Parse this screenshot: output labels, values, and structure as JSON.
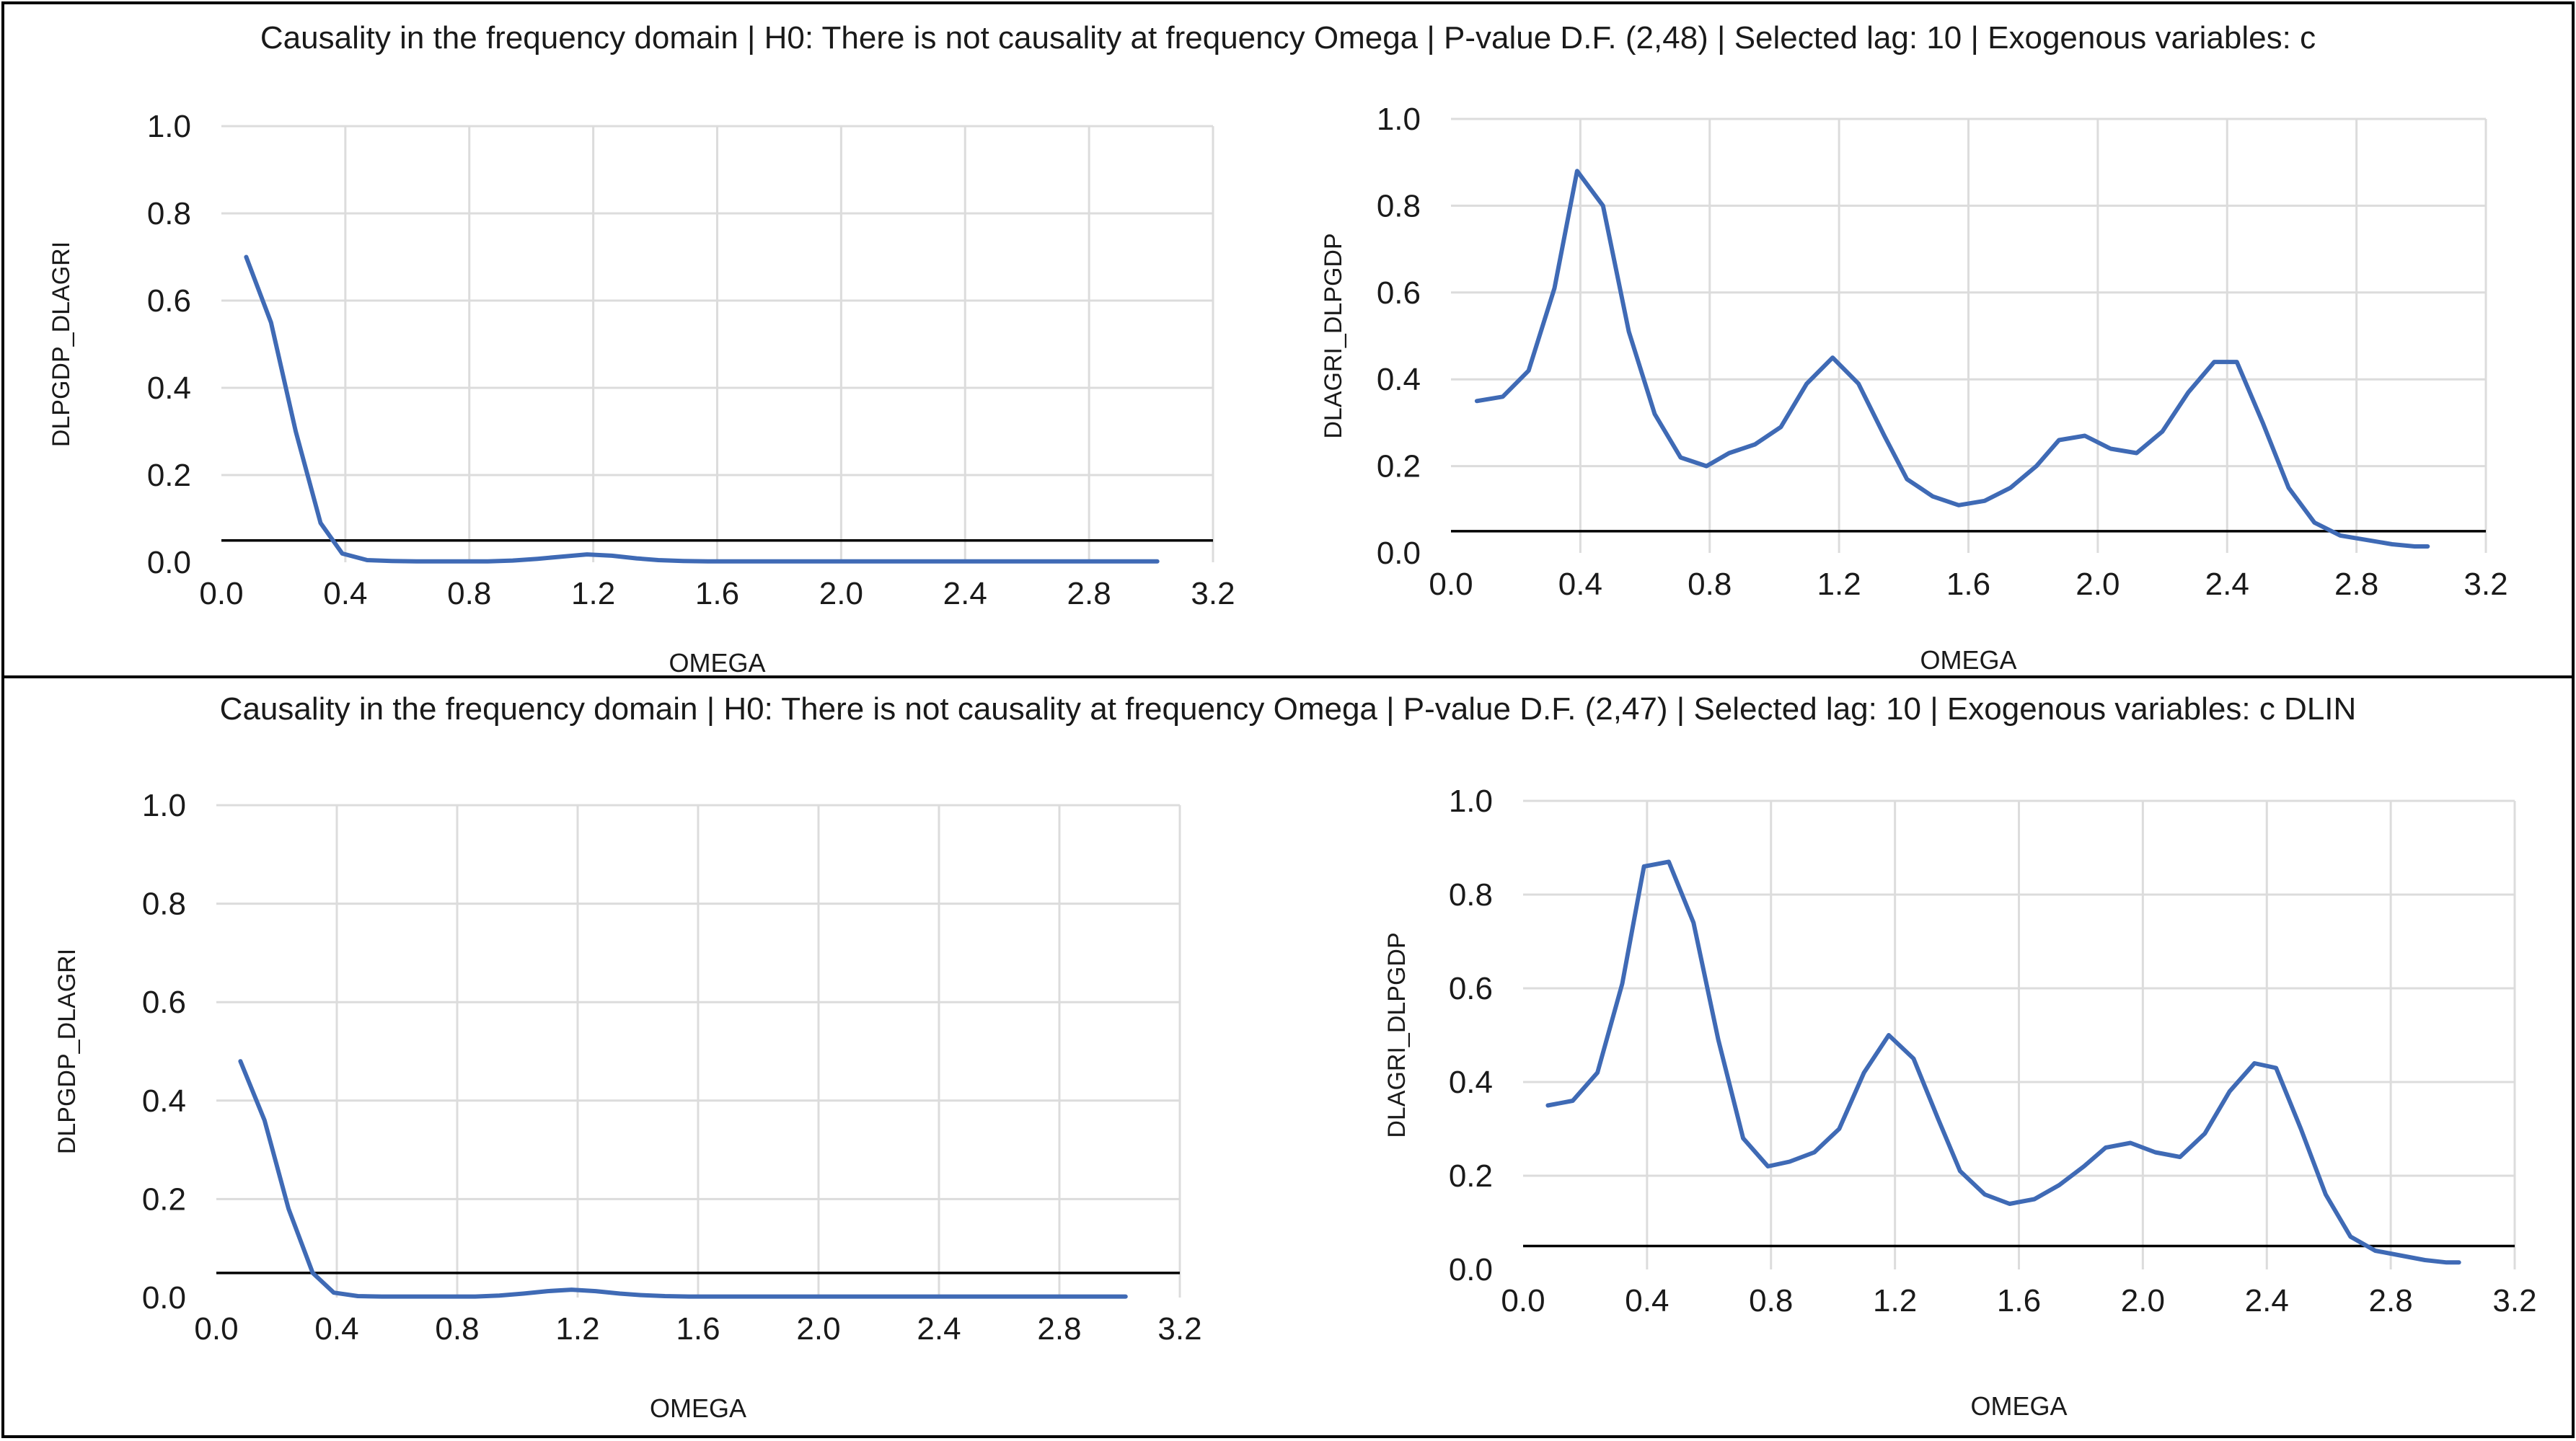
{
  "colors": {
    "series": "#3F6AB5",
    "reference": "#000000",
    "grid": "#dcdcdc",
    "frame": "#000000"
  },
  "panels": [
    {
      "title": "Causality in the frequency domain | H0: There is not causality at frequency Omega | P-value D.F. (2,48) | Selected lag: 10 | Exogenous variables: c"
    },
    {
      "title": "Causality in the frequency domain | H0: There is not causality at frequency Omega | P-value D.F. (2,47) | Selected lag: 10 | Exogenous variables: c DLIN"
    }
  ],
  "chart_data": [
    {
      "type": "line",
      "panel": 0,
      "position": "left",
      "title": "",
      "xlabel": "OMEGA",
      "ylabel": "DLPGDP_DLAGRI",
      "xlim": [
        0.0,
        3.2
      ],
      "ylim": [
        0.0,
        1.0
      ],
      "xticks": [
        "0.0",
        "0.4",
        "0.8",
        "1.2",
        "1.6",
        "2.0",
        "2.4",
        "2.8",
        "3.2"
      ],
      "yticks": [
        "0.0",
        "0.2",
        "0.4",
        "0.6",
        "0.8",
        "1.0"
      ],
      "grid": "vertical and horizontal",
      "reference_line": 0.05,
      "x": [
        0.08,
        0.16,
        0.24,
        0.32,
        0.39,
        0.47,
        0.55,
        0.63,
        0.71,
        0.79,
        0.86,
        0.94,
        1.02,
        1.1,
        1.18,
        1.26,
        1.34,
        1.41,
        1.49,
        1.57,
        1.65,
        1.73,
        1.81,
        1.88,
        1.96,
        2.04,
        2.12,
        2.2,
        2.28,
        2.36,
        2.43,
        2.51,
        2.59,
        2.67,
        2.75,
        2.83,
        2.91,
        2.98,
        3.02
      ],
      "values": [
        0.7,
        0.55,
        0.3,
        0.09,
        0.02,
        0.005,
        0.003,
        0.002,
        0.002,
        0.002,
        0.002,
        0.004,
        0.008,
        0.013,
        0.018,
        0.015,
        0.009,
        0.005,
        0.003,
        0.002,
        0.002,
        0.002,
        0.002,
        0.002,
        0.002,
        0.002,
        0.002,
        0.002,
        0.002,
        0.002,
        0.002,
        0.002,
        0.002,
        0.002,
        0.002,
        0.002,
        0.002,
        0.002,
        0.002
      ]
    },
    {
      "type": "line",
      "panel": 0,
      "position": "right",
      "title": "",
      "xlabel": "OMEGA",
      "ylabel": "DLAGRI_DLPGDP",
      "xlim": [
        0.0,
        3.2
      ],
      "ylim": [
        0.0,
        1.0
      ],
      "xticks": [
        "0.0",
        "0.4",
        "0.8",
        "1.2",
        "1.6",
        "2.0",
        "2.4",
        "2.8",
        "3.2"
      ],
      "yticks": [
        "0.0",
        "0.2",
        "0.4",
        "0.6",
        "0.8",
        "1.0"
      ],
      "grid": "vertical and horizontal",
      "reference_line": 0.05,
      "x": [
        0.08,
        0.16,
        0.24,
        0.32,
        0.39,
        0.47,
        0.55,
        0.63,
        0.71,
        0.79,
        0.86,
        0.94,
        1.02,
        1.1,
        1.18,
        1.26,
        1.34,
        1.41,
        1.49,
        1.57,
        1.65,
        1.73,
        1.81,
        1.88,
        1.96,
        2.04,
        2.12,
        2.2,
        2.28,
        2.36,
        2.43,
        2.51,
        2.59,
        2.67,
        2.75,
        2.83,
        2.91,
        2.98,
        3.02
      ],
      "values": [
        0.35,
        0.36,
        0.42,
        0.61,
        0.88,
        0.8,
        0.51,
        0.32,
        0.22,
        0.2,
        0.23,
        0.25,
        0.29,
        0.39,
        0.45,
        0.39,
        0.27,
        0.17,
        0.13,
        0.11,
        0.12,
        0.15,
        0.2,
        0.26,
        0.27,
        0.24,
        0.23,
        0.28,
        0.37,
        0.44,
        0.44,
        0.3,
        0.15,
        0.07,
        0.04,
        0.03,
        0.02,
        0.015,
        0.015
      ]
    },
    {
      "type": "line",
      "panel": 1,
      "position": "left",
      "title": "",
      "xlabel": "OMEGA",
      "ylabel": "DLPGDP_DLAGRI",
      "xlim": [
        0.0,
        3.2
      ],
      "ylim": [
        0.0,
        1.0
      ],
      "xticks": [
        "0.0",
        "0.4",
        "0.8",
        "1.2",
        "1.6",
        "2.0",
        "2.4",
        "2.8",
        "3.2"
      ],
      "yticks": [
        "0.0",
        "0.2",
        "0.4",
        "0.6",
        "0.8",
        "1.0"
      ],
      "grid": "vertical and horizontal",
      "reference_line": 0.05,
      "x": [
        0.08,
        0.16,
        0.24,
        0.32,
        0.39,
        0.47,
        0.55,
        0.63,
        0.71,
        0.79,
        0.86,
        0.94,
        1.02,
        1.1,
        1.18,
        1.26,
        1.34,
        1.41,
        1.49,
        1.57,
        1.65,
        1.73,
        1.81,
        1.88,
        1.96,
        2.04,
        2.12,
        2.2,
        2.28,
        2.36,
        2.43,
        2.51,
        2.59,
        2.67,
        2.75,
        2.83,
        2.91,
        2.98,
        3.02
      ],
      "values": [
        0.48,
        0.36,
        0.18,
        0.05,
        0.01,
        0.003,
        0.002,
        0.002,
        0.002,
        0.002,
        0.002,
        0.004,
        0.008,
        0.013,
        0.016,
        0.013,
        0.008,
        0.005,
        0.003,
        0.002,
        0.002,
        0.002,
        0.002,
        0.002,
        0.002,
        0.002,
        0.002,
        0.002,
        0.002,
        0.002,
        0.002,
        0.002,
        0.002,
        0.002,
        0.002,
        0.002,
        0.002,
        0.002,
        0.002
      ]
    },
    {
      "type": "line",
      "panel": 1,
      "position": "right",
      "title": "",
      "xlabel": "OMEGA",
      "ylabel": "DLAGRI_DLPGDP",
      "xlim": [
        0.0,
        3.2
      ],
      "ylim": [
        0.0,
        1.0
      ],
      "xticks": [
        "0.0",
        "0.4",
        "0.8",
        "1.2",
        "1.6",
        "2.0",
        "2.4",
        "2.8",
        "3.2"
      ],
      "yticks": [
        "0.0",
        "0.2",
        "0.4",
        "0.6",
        "0.8",
        "1.0"
      ],
      "grid": "vertical and horizontal",
      "reference_line": 0.05,
      "x": [
        0.08,
        0.16,
        0.24,
        0.32,
        0.39,
        0.47,
        0.55,
        0.63,
        0.71,
        0.79,
        0.86,
        0.94,
        1.02,
        1.1,
        1.18,
        1.26,
        1.34,
        1.41,
        1.49,
        1.57,
        1.65,
        1.73,
        1.81,
        1.88,
        1.96,
        2.04,
        2.12,
        2.2,
        2.28,
        2.36,
        2.43,
        2.51,
        2.59,
        2.67,
        2.75,
        2.83,
        2.91,
        2.98,
        3.02
      ],
      "values": [
        0.35,
        0.36,
        0.42,
        0.61,
        0.86,
        0.87,
        0.74,
        0.49,
        0.28,
        0.22,
        0.23,
        0.25,
        0.3,
        0.42,
        0.5,
        0.45,
        0.32,
        0.21,
        0.16,
        0.14,
        0.15,
        0.18,
        0.22,
        0.26,
        0.27,
        0.25,
        0.24,
        0.29,
        0.38,
        0.44,
        0.43,
        0.3,
        0.16,
        0.07,
        0.04,
        0.03,
        0.02,
        0.015,
        0.015
      ]
    }
  ]
}
